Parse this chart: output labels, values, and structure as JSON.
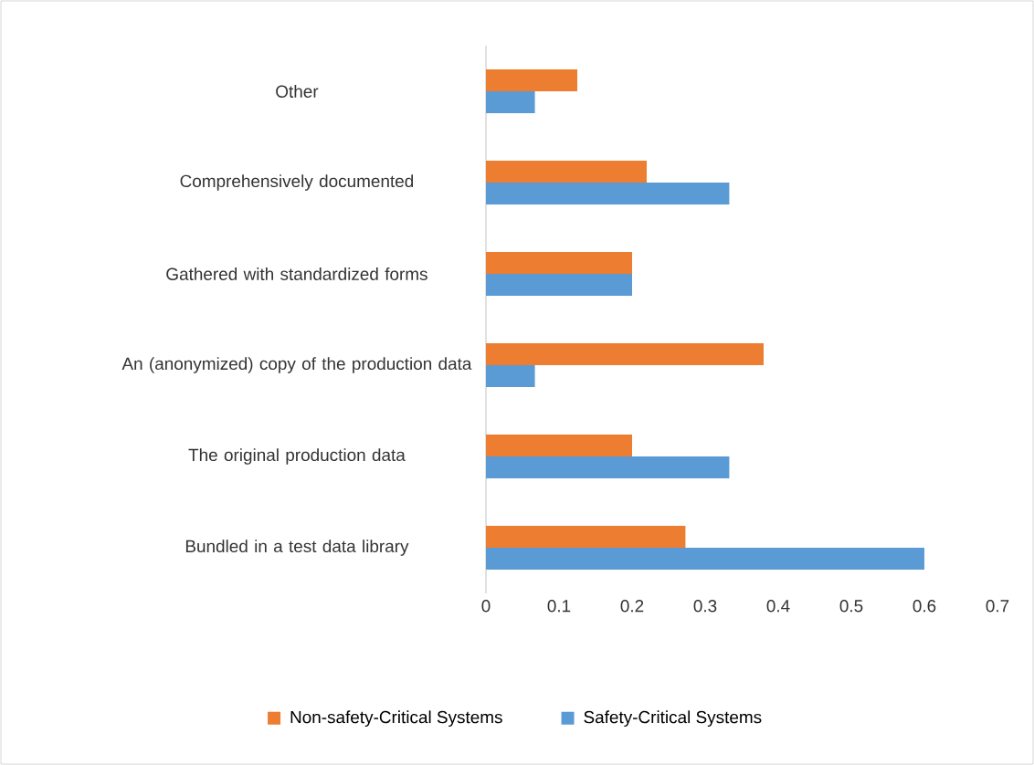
{
  "chart_data": {
    "type": "bar",
    "orientation": "horizontal",
    "categories": [
      "Other",
      "Comprehensively documented",
      "Gathered with standardized forms",
      "An (anonymized) copy of the production data",
      "The original production data",
      "Bundled in a test data library"
    ],
    "series": [
      {
        "name": "Non-safety-Critical Systems",
        "color": "#ed7d31",
        "values": [
          0.125,
          0.22,
          0.2,
          0.38,
          0.2,
          0.273
        ]
      },
      {
        "name": "Safety-Critical Systems",
        "color": "#5b9bd5",
        "values": [
          0.067,
          0.333,
          0.2,
          0.067,
          0.333,
          0.6
        ]
      }
    ],
    "xlim": [
      0,
      0.7
    ],
    "xticks": [
      0,
      0.1,
      0.2,
      0.3,
      0.4,
      0.5,
      0.6,
      0.7
    ],
    "grid": false,
    "legend": "bottom"
  }
}
